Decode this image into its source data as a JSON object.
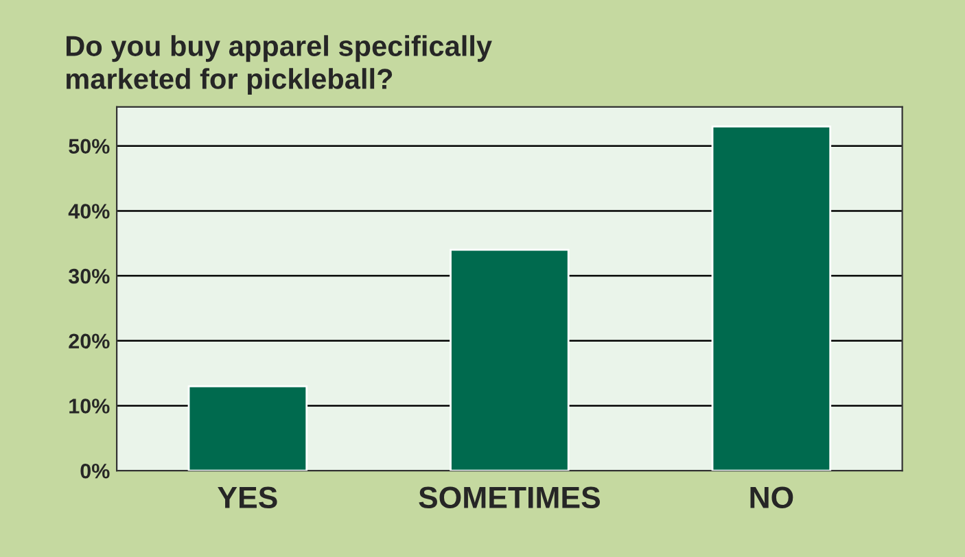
{
  "chart_data": {
    "type": "bar",
    "title": "Do you buy apparel specifically\nmarketed for pickleball?",
    "categories": [
      "YES",
      "SOMETIMES",
      "NO"
    ],
    "values": [
      13,
      34,
      53
    ],
    "color": "#006a4e",
    "ylim": [
      0,
      56
    ],
    "yticks": [
      {
        "value": 0,
        "label": "0%"
      },
      {
        "value": 10,
        "label": "10%"
      },
      {
        "value": 20,
        "label": "20%"
      },
      {
        "value": 30,
        "label": "30%"
      },
      {
        "value": 40,
        "label": "40%"
      },
      {
        "value": 50,
        "label": "50%"
      }
    ],
    "grid": "y"
  }
}
